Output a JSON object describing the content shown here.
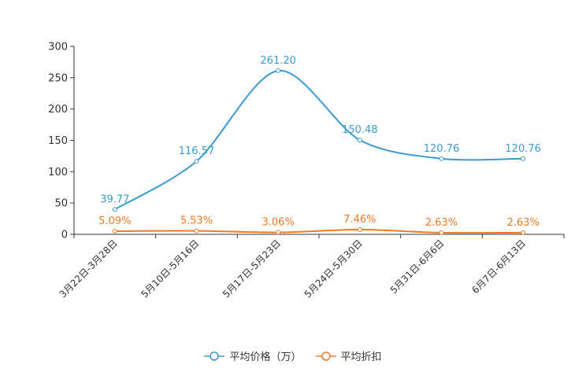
{
  "chart_data": {
    "type": "line",
    "title": "",
    "xlabel": "",
    "ylabel": "",
    "ylim": [
      0,
      300
    ],
    "yticks": [
      "0",
      "50",
      "100",
      "150",
      "200",
      "250",
      "300"
    ],
    "categories": [
      "3月22日-3月28日",
      "5月10日-5月16日",
      "5月17日-5月23日",
      "5月24日-5月30日",
      "5月31日-6月6日",
      "6月7日-6月13日"
    ],
    "series": [
      {
        "name": "平均价格（万）",
        "color": "#3a9bd1",
        "values": [
          39.77,
          116.57,
          261.2,
          150.48,
          120.76,
          120.76
        ],
        "labels": [
          "39.77",
          "116.57",
          "261.20",
          "150.48",
          "120.76",
          "120.76"
        ]
      },
      {
        "name": "平均折扣",
        "color": "#f07a22",
        "values": [
          5.09,
          5.53,
          3.06,
          7.46,
          2.63,
          2.63
        ],
        "labels": [
          "5.09%",
          "5.53%",
          "3.06%",
          "7.46%",
          "2.63%",
          "2.63%"
        ]
      }
    ],
    "legend_position": "bottom-center",
    "grid": false
  }
}
